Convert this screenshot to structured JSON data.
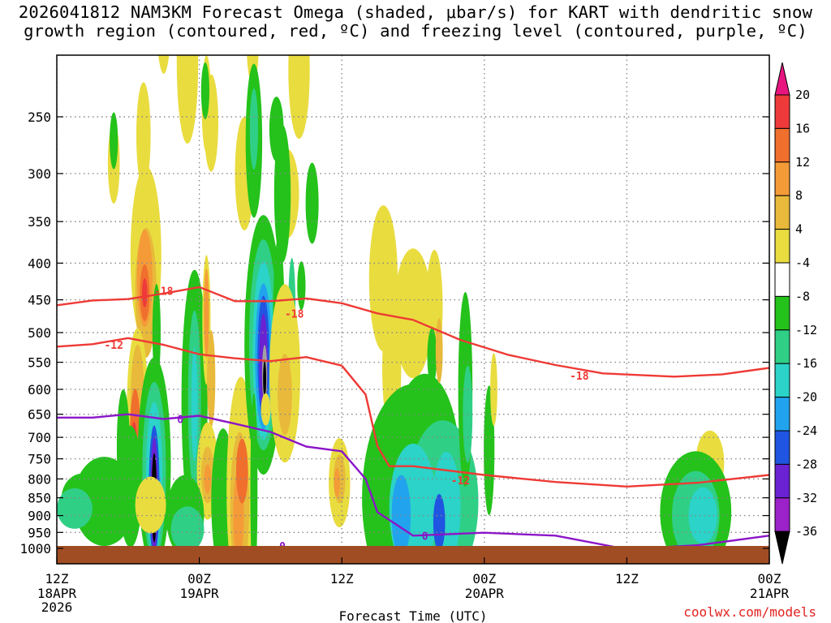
{
  "title": {
    "line1": "2026041812 NAM3KM Forecast Omega (shaded, μbar/s) for KART with dendritic snow",
    "line2": "growth region (contoured, red, ºC) and freezing level (contoured, purple, ºC)"
  },
  "credit": "coolwx.com/models",
  "colors": {
    "temp_contour": "#ee3a35",
    "freezing_contour": "#8b16c8",
    "ground": "#a14d24",
    "grid": "#888888"
  },
  "chart_data": {
    "type": "heatmap",
    "xlabel": "Forecast Time (UTC)",
    "x_ticks": [
      {
        "label": "12Z",
        "sub1": "18APR",
        "sub2": "2026"
      },
      {
        "label": "00Z",
        "sub1": "19APR",
        "sub2": ""
      },
      {
        "label": "12Z",
        "sub1": "",
        "sub2": ""
      },
      {
        "label": "00Z",
        "sub1": "20APR",
        "sub2": ""
      },
      {
        "label": "12Z",
        "sub1": "",
        "sub2": ""
      },
      {
        "label": "00Z",
        "sub1": "21APR",
        "sub2": ""
      }
    ],
    "xlim_hours": [
      0,
      60
    ],
    "ylabel": "",
    "y_ticks": [
      250,
      300,
      350,
      400,
      450,
      500,
      550,
      600,
      650,
      700,
      750,
      800,
      850,
      900,
      950,
      1000
    ],
    "ylim_hpa": [
      200,
      1030
    ],
    "y_scale": "log-pressure",
    "grid": true,
    "colorbar": {
      "label": "μbar/s",
      "levels": [
        20,
        16,
        12,
        8,
        4,
        -4,
        -8,
        -12,
        -16,
        -20,
        -24,
        -28,
        -32,
        -36
      ],
      "colors": [
        "#ee3a3a",
        "#f06f2d",
        "#f49b38",
        "#e8b93a",
        "#e9dc3f",
        "#ffffff",
        "#24c21b",
        "#2fcf86",
        "#2bd3c8",
        "#22a3ee",
        "#1f55e0",
        "#6a22d2",
        "#9b22c8",
        "#a2a2a2",
        "#000000"
      ],
      "top_arrow_color": "#e8157f",
      "bottom_arrow_color": "#000000"
    },
    "contour_labels": {
      "red": [
        "-18",
        "-12",
        "-18",
        "-12",
        "-18"
      ],
      "purple": [
        "0",
        "0",
        "0"
      ]
    },
    "red_contour_m18": [
      [
        0,
        458
      ],
      [
        3,
        451
      ],
      [
        6,
        449
      ],
      [
        9,
        441
      ],
      [
        12,
        432
      ],
      [
        15,
        452
      ],
      [
        18,
        452
      ],
      [
        21,
        448
      ],
      [
        24,
        455
      ],
      [
        27,
        470
      ],
      [
        30,
        480
      ]
    ],
    "red_contour_m12": [
      [
        0,
        523
      ],
      [
        3,
        519
      ],
      [
        6,
        509
      ],
      [
        9,
        520
      ],
      [
        12,
        536
      ],
      [
        15,
        543
      ],
      [
        18,
        548
      ],
      [
        21,
        541
      ],
      [
        24,
        556
      ]
    ],
    "red_contour_m12_low": [
      [
        24,
        556
      ],
      [
        26,
        610
      ],
      [
        27,
        720
      ],
      [
        28,
        768
      ],
      [
        30,
        768
      ],
      [
        36,
        790
      ],
      [
        42,
        808
      ],
      [
        48,
        820
      ],
      [
        54,
        810
      ],
      [
        60,
        790
      ]
    ],
    "red_contour_m18_low": [
      [
        30,
        480
      ],
      [
        34,
        512
      ],
      [
        38,
        537
      ],
      [
        42,
        555
      ],
      [
        46,
        570
      ],
      [
        52,
        576
      ],
      [
        56,
        572
      ],
      [
        60,
        560
      ]
    ],
    "freezing_level": [
      [
        0,
        657
      ],
      [
        3,
        657
      ],
      [
        6,
        650
      ],
      [
        9,
        660
      ],
      [
        12,
        653
      ],
      [
        15,
        670
      ],
      [
        18,
        688
      ],
      [
        21,
        721
      ],
      [
        24,
        732
      ],
      [
        26,
        800
      ],
      [
        27,
        890
      ],
      [
        30,
        960
      ],
      [
        36,
        951
      ],
      [
        42,
        960
      ],
      [
        48,
        1003
      ],
      [
        54,
        990
      ],
      [
        60,
        960
      ]
    ],
    "ground_hpa": 1000
  }
}
